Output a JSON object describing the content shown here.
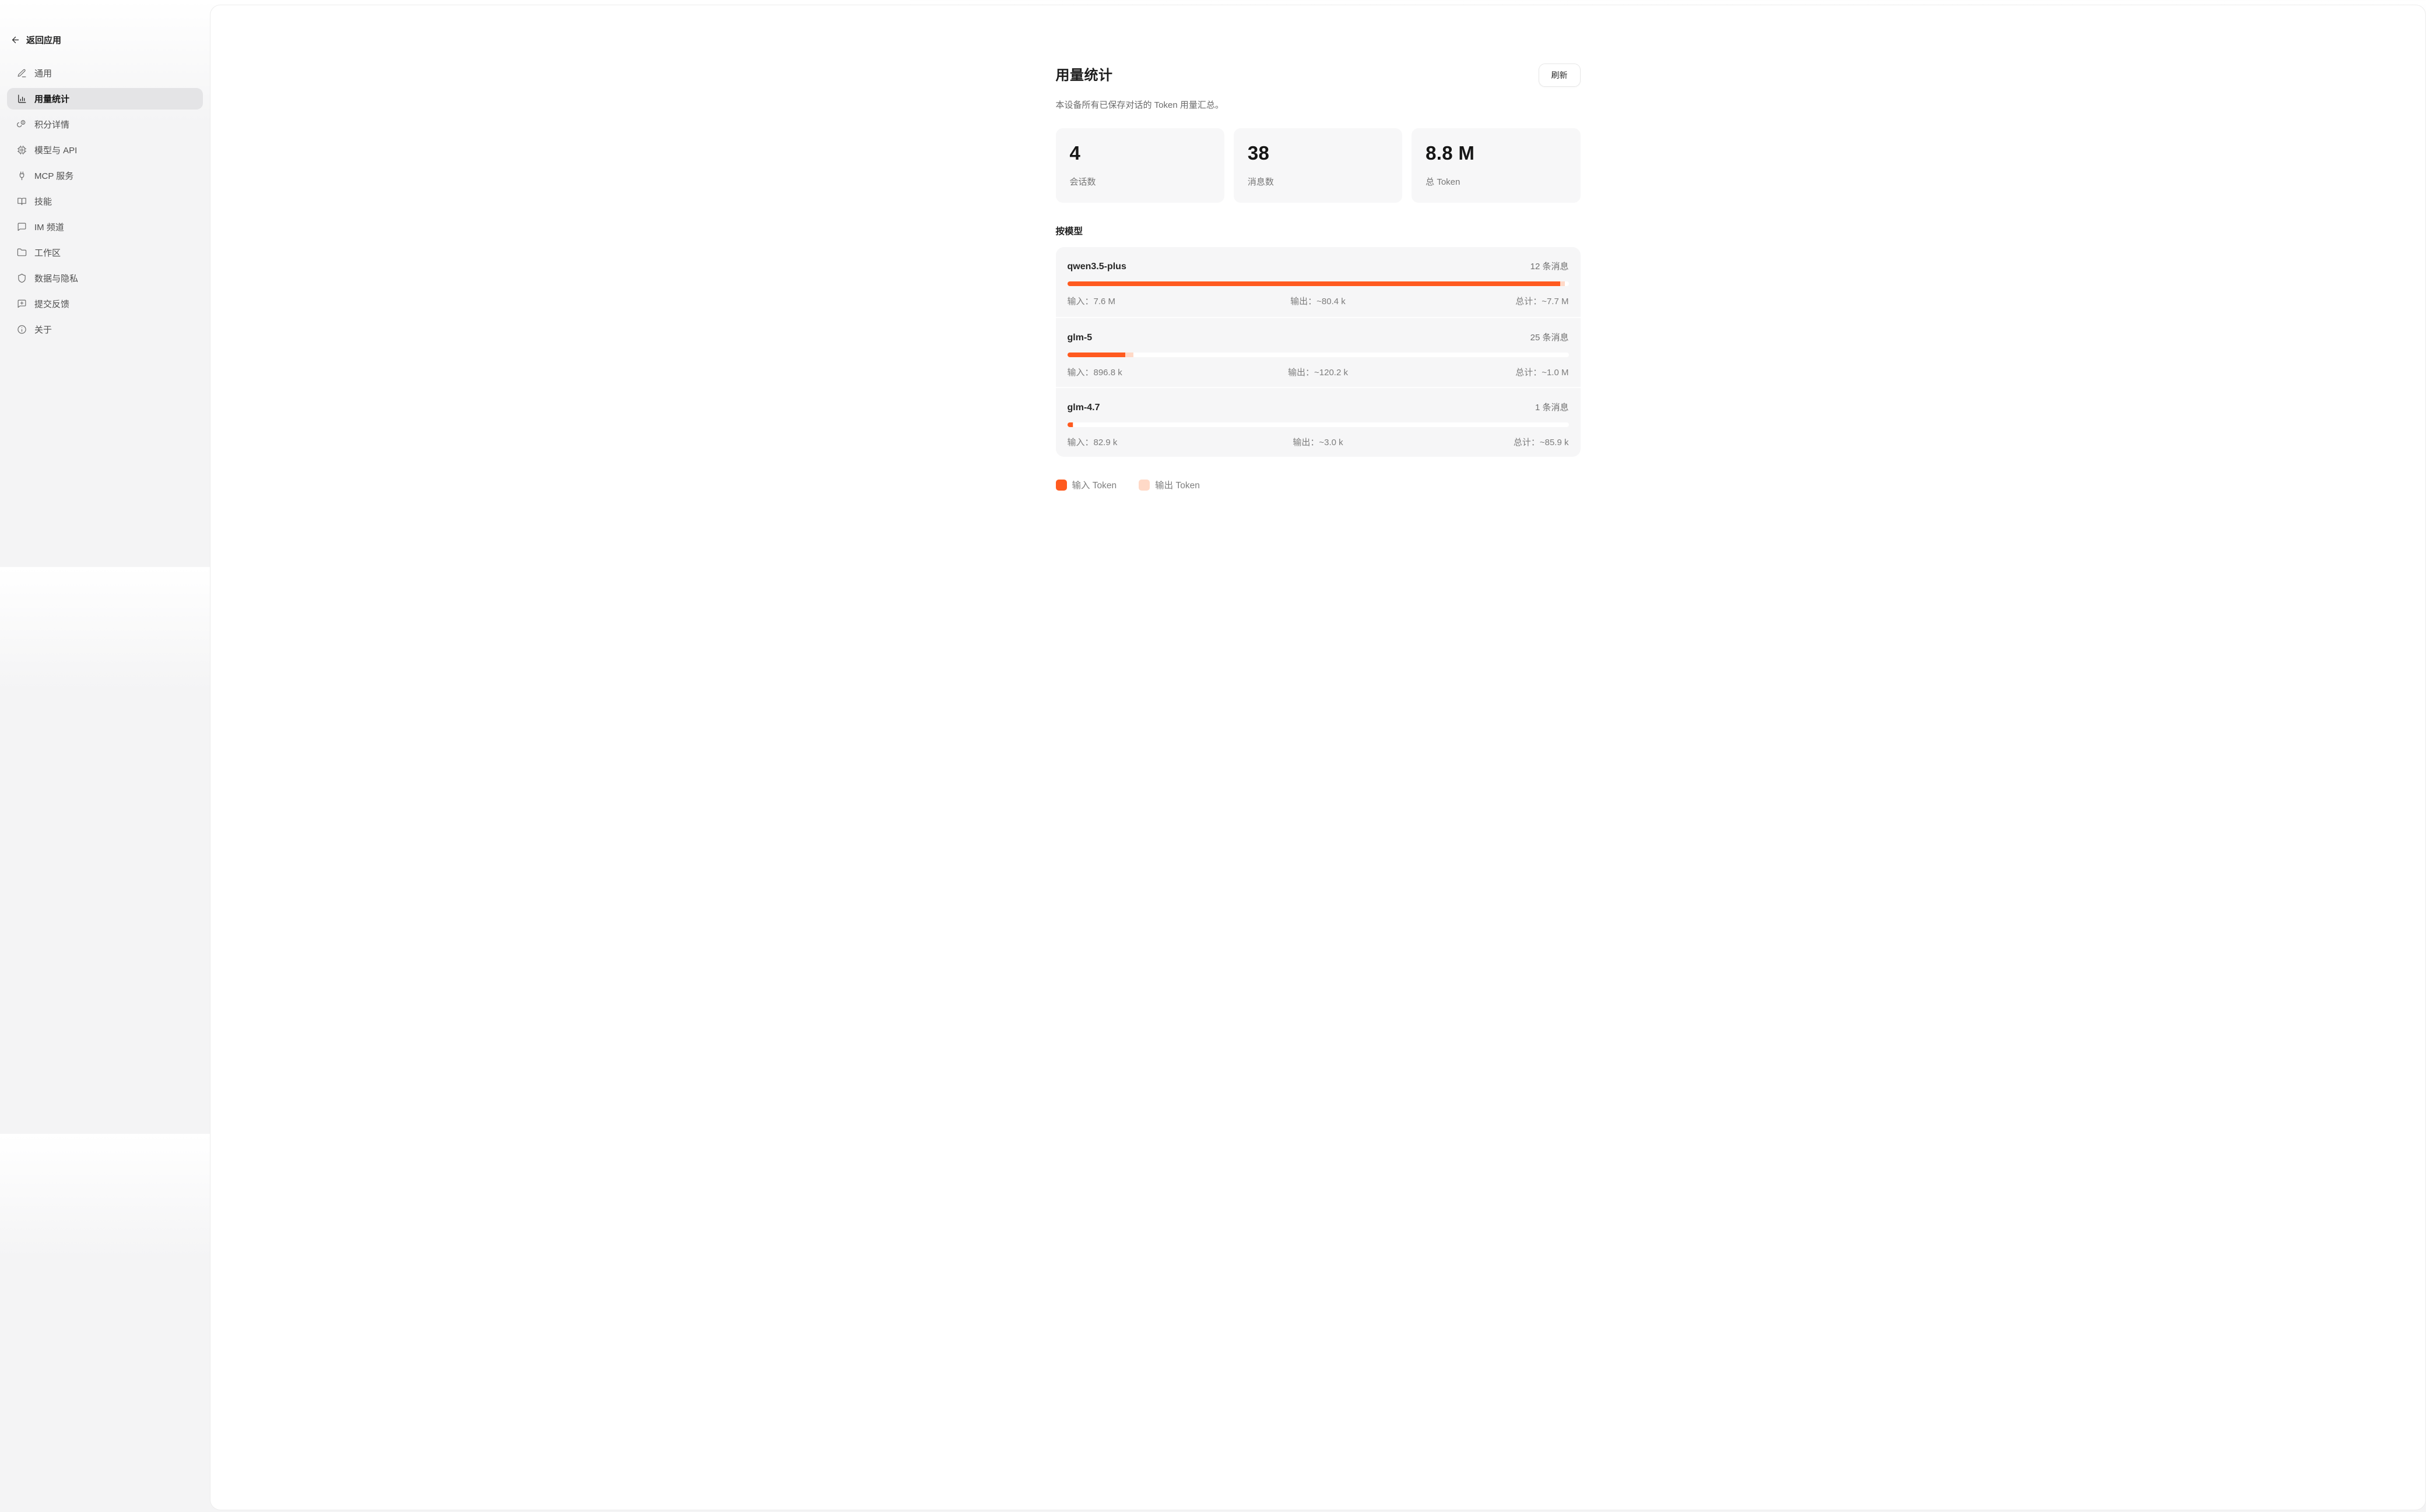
{
  "sidebar": {
    "back_label": "返回应用",
    "items": [
      {
        "label": "通用",
        "icon": "pencil-icon",
        "selected": false
      },
      {
        "label": "用量统计",
        "icon": "bar-chart-icon",
        "selected": true
      },
      {
        "label": "积分详情",
        "icon": "coins-icon",
        "selected": false
      },
      {
        "label": "模型与 API",
        "icon": "cpu-icon",
        "selected": false
      },
      {
        "label": "MCP 服务",
        "icon": "plug-icon",
        "selected": false
      },
      {
        "label": "技能",
        "icon": "book-open-icon",
        "selected": false
      },
      {
        "label": "IM 频道",
        "icon": "message-icon",
        "selected": false
      },
      {
        "label": "工作区",
        "icon": "folder-icon",
        "selected": false
      },
      {
        "label": "数据与隐私",
        "icon": "shield-icon",
        "selected": false
      },
      {
        "label": "提交反馈",
        "icon": "message-plus-icon",
        "selected": false
      },
      {
        "label": "关于",
        "icon": "info-icon",
        "selected": false
      }
    ]
  },
  "header": {
    "title": "用量统计",
    "subtitle": "本设备所有已保存对话的 Token 用量汇总。",
    "refresh_label": "刷新"
  },
  "stats": [
    {
      "value": "4",
      "label": "会话数"
    },
    {
      "value": "38",
      "label": "消息数"
    },
    {
      "value": "8.8 M",
      "label": "总 Token"
    }
  ],
  "by_model": {
    "section_label": "按模型",
    "models": [
      {
        "name": "qwen3.5-plus",
        "messages": "12 条消息",
        "input": "输入：7.6 M",
        "output": "输出：~80.4 k",
        "total": "总计：~7.7 M",
        "input_pct": 98.3,
        "output_pct": 1.0
      },
      {
        "name": "glm-5",
        "messages": "25 条消息",
        "input": "输入：896.8 k",
        "output": "输出：~120.2 k",
        "total": "总计：~1.0 M",
        "input_pct": 11.6,
        "output_pct": 1.6
      },
      {
        "name": "glm-4.7",
        "messages": "1 条消息",
        "input": "输入：82.9 k",
        "output": "输出：~3.0 k",
        "total": "总计：~85.9 k",
        "input_pct": 1.1,
        "output_pct": 0.05
      }
    ]
  },
  "legend": [
    {
      "label": "输入 Token",
      "color": "#ff5a1f"
    },
    {
      "label": "输出 Token",
      "color": "#ffd9c7"
    }
  ],
  "colors": {
    "accent_input": "#ff5a1f",
    "accent_output": "#ffd9c7",
    "selected_item_bg": "#e4e4e6",
    "panel_bg": "#ffffff",
    "card_bg": "#f7f7f8"
  }
}
